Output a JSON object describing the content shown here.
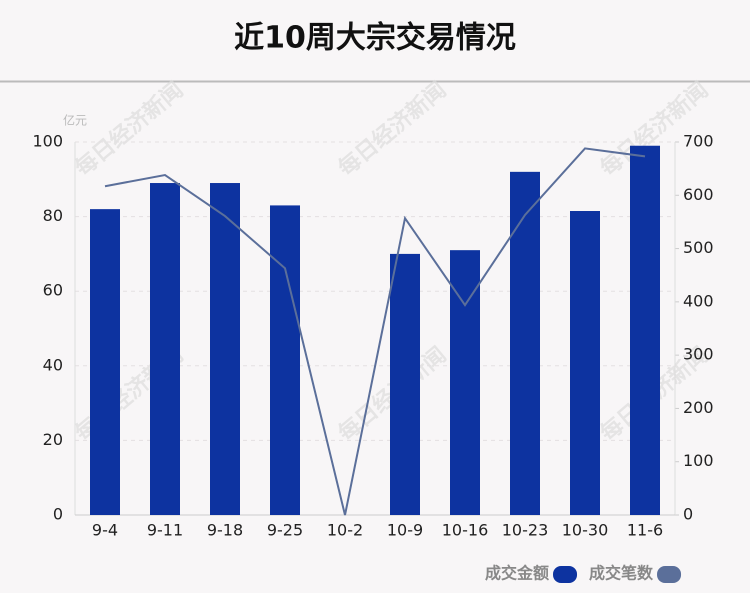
{
  "chart_data": {
    "type": "bar-line",
    "title": "近10周大宗交易情况",
    "y_unit": "亿元",
    "watermark": "每日经济新闻",
    "categories": [
      "9-4",
      "9-11",
      "9-18",
      "9-25",
      "10-2",
      "10-9",
      "10-16",
      "10-23",
      "10-30",
      "11-6"
    ],
    "series": [
      {
        "name": "成交金额",
        "type": "bar",
        "color": "#0d33a0",
        "values": [
          82,
          89,
          89,
          83,
          0,
          70,
          71,
          92,
          81.5,
          99
        ]
      },
      {
        "name": "成交笔数",
        "type": "line",
        "axis": "y2",
        "color": "#5b6f9a",
        "values": [
          617,
          638,
          561,
          463,
          0,
          557,
          394,
          563,
          688,
          673
        ]
      }
    ],
    "ylim": [
      0,
      100
    ],
    "yticks": [
      0,
      20,
      40,
      60,
      80,
      100
    ],
    "y2lim": [
      0,
      700
    ],
    "y2ticks": [
      0,
      100,
      200,
      300,
      400,
      500,
      600,
      700
    ],
    "grid": true
  }
}
